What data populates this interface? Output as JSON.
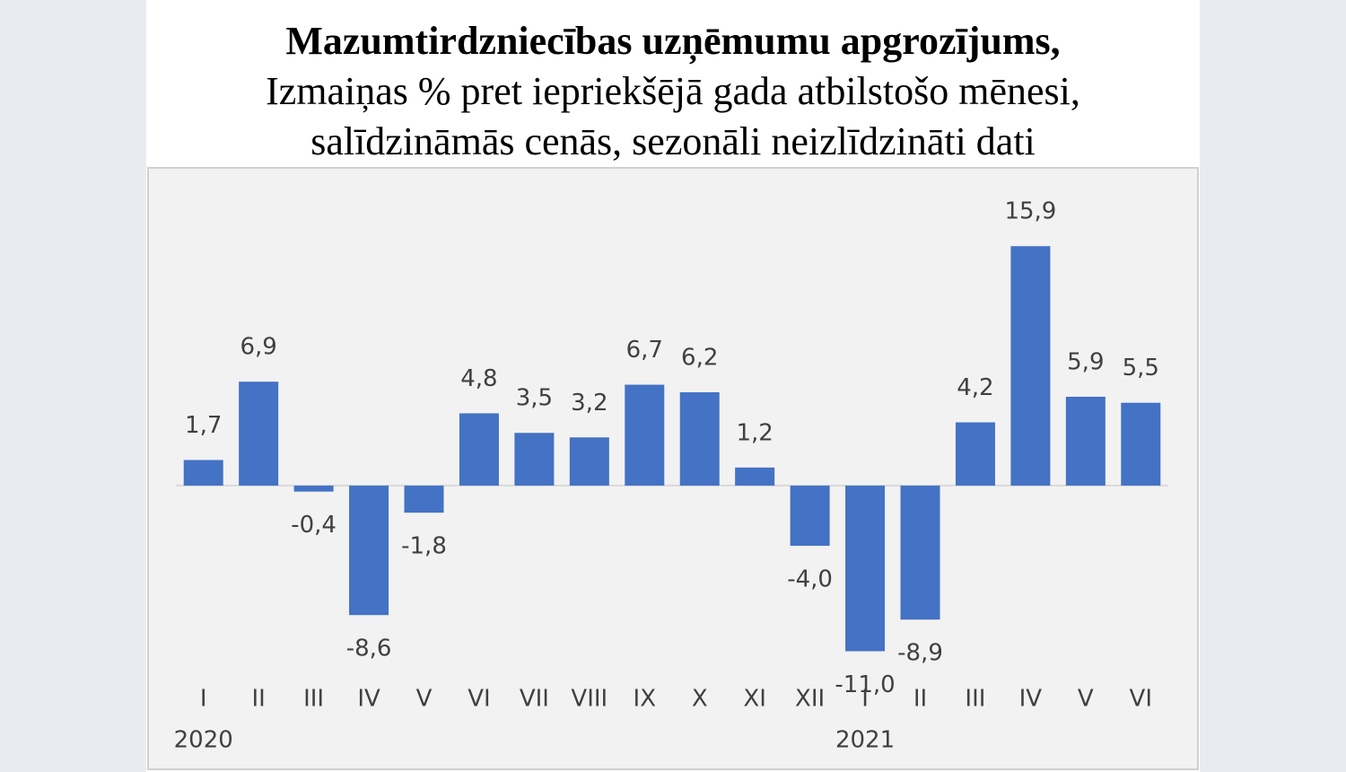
{
  "chart_data": {
    "type": "bar",
    "title": "Mazumtirdzniecības uzņēmumu apgrozījums,",
    "subtitle": [
      "Izmaiņas % pret iepriekšējā gada atbilstošo mēnesi,",
      "salīdzināmās cenās, sezonāli neizlīdzināti dati"
    ],
    "categories": [
      "I",
      "II",
      "III",
      "IV",
      "V",
      "VI",
      "VII",
      "VIII",
      "IX",
      "X",
      "XI",
      "XII",
      "I",
      "II",
      "III",
      "IV",
      "V",
      "VI"
    ],
    "category_groups": [
      "2020",
      null,
      null,
      null,
      null,
      null,
      null,
      null,
      null,
      null,
      null,
      null,
      "2021",
      null,
      null,
      null,
      null,
      null
    ],
    "values": [
      1.7,
      6.9,
      -0.4,
      -8.6,
      -1.8,
      4.8,
      3.5,
      3.2,
      6.7,
      6.2,
      1.2,
      -4.0,
      -11.0,
      -8.9,
      4.2,
      15.9,
      5.9,
      5.5
    ],
    "value_labels": [
      "1,7",
      "6,9",
      "-0,4",
      "-8,6",
      "-1,8",
      "4,8",
      "3,5",
      "3,2",
      "6,7",
      "6,2",
      "1,2",
      "-4,0",
      "-11,0",
      "-8,9",
      "4,2",
      "15,9",
      "5,9",
      "5,5"
    ],
    "color": "#4472c4",
    "ylim": [
      -13,
      18
    ]
  }
}
